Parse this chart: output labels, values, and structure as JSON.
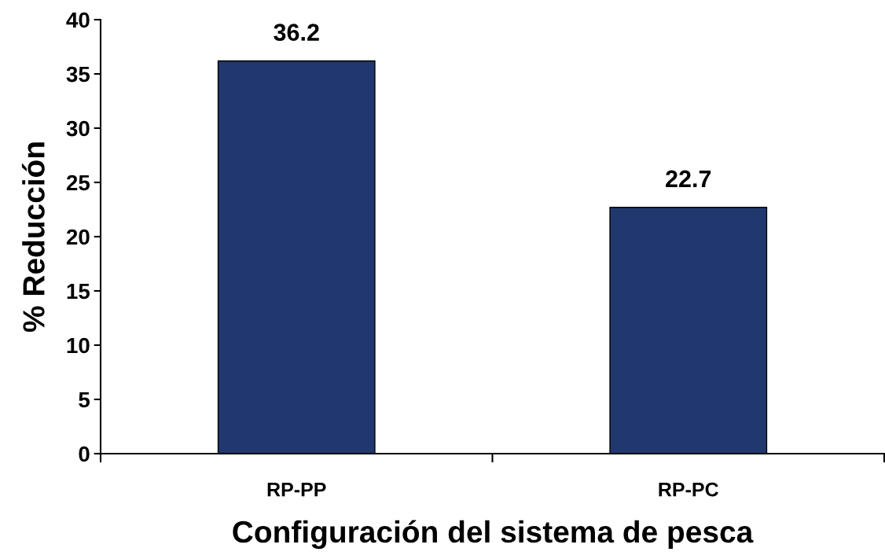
{
  "chart_data": {
    "type": "bar",
    "xlabel": "Configuración del sistema de pesca",
    "ylabel": "% Reducción",
    "categories": [
      "RP-PP",
      "RP-PC"
    ],
    "values": [
      36.2,
      22.7
    ],
    "color": "#21386f",
    "ylim": [
      0,
      40
    ],
    "yticks": [
      0,
      5,
      10,
      15,
      20,
      25,
      30,
      35,
      40
    ],
    "grid": false,
    "data_labels": true
  }
}
